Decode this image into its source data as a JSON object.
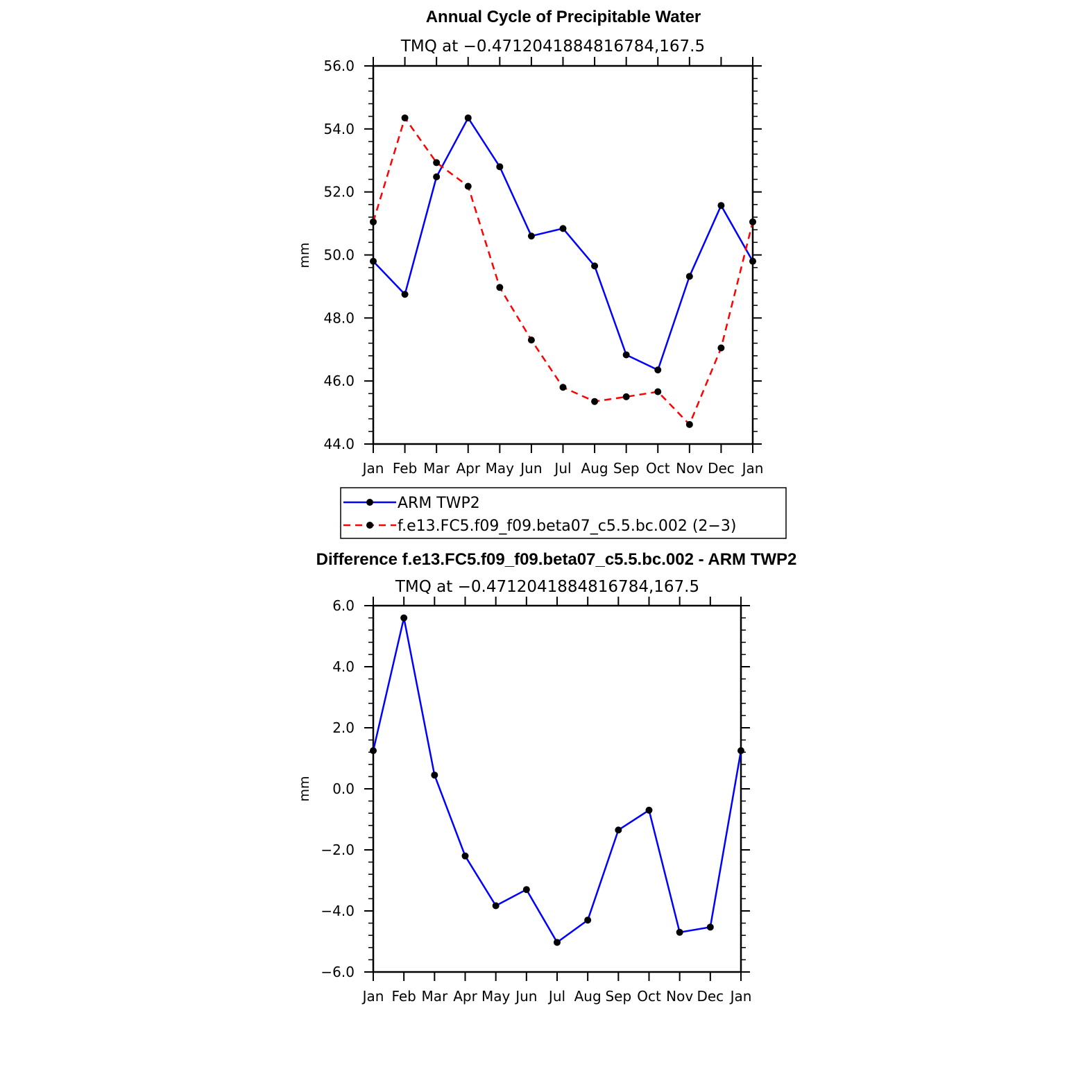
{
  "chart_data": [
    {
      "type": "line",
      "title": "Annual Cycle of Precipitable Water",
      "subtitle": "TMQ at −0.4712041884816784,167.5",
      "xlabel": "",
      "ylabel": "mm",
      "categories": [
        "Jan",
        "Feb",
        "Mar",
        "Apr",
        "May",
        "Jun",
        "Jul",
        "Aug",
        "Sep",
        "Oct",
        "Nov",
        "Dec",
        "Jan"
      ],
      "ylim": [
        44.0,
        56.0
      ],
      "ytick_step": 2.0,
      "ytick_labels": [
        "44.0",
        "46.0",
        "48.0",
        "50.0",
        "52.0",
        "54.0",
        "56.0"
      ],
      "series": [
        {
          "name": "ARM TWP2",
          "color": "#0000ff",
          "dash": "solid",
          "values": [
            49.8,
            48.75,
            52.48,
            54.35,
            52.8,
            50.6,
            50.84,
            49.65,
            46.83,
            46.35,
            49.32,
            51.57,
            49.8
          ]
        },
        {
          "name": "f.e13.FC5.f09_f09.beta07_c5.5.bc.002 (2−3)",
          "color": "#ff0000",
          "dash": "dashed",
          "values": [
            51.05,
            54.35,
            52.93,
            52.18,
            48.97,
            47.3,
            45.8,
            45.35,
            45.5,
            45.66,
            44.62,
            47.05,
            51.05
          ]
        }
      ],
      "legend_position": "below"
    },
    {
      "type": "line",
      "title": "Difference f.e13.FC5.f09_f09.beta07_c5.5.bc.002 - ARM TWP2",
      "subtitle": "TMQ at −0.4712041884816784,167.5",
      "xlabel": "",
      "ylabel": "mm",
      "categories": [
        "Jan",
        "Feb",
        "Mar",
        "Apr",
        "May",
        "Jun",
        "Jul",
        "Aug",
        "Sep",
        "Oct",
        "Nov",
        "Dec",
        "Jan"
      ],
      "ylim": [
        -6.0,
        6.0
      ],
      "ytick_step": 2.0,
      "ytick_labels": [
        "−6.0",
        "−4.0",
        "−2.0",
        "0.0",
        "2.0",
        "4.0",
        "6.0"
      ],
      "series": [
        {
          "name": "Difference",
          "color": "#0000ff",
          "dash": "solid",
          "values": [
            1.25,
            5.6,
            0.45,
            -2.2,
            -3.83,
            -3.3,
            -5.03,
            -4.3,
            -1.35,
            -0.7,
            -4.7,
            -4.53,
            1.25
          ]
        }
      ]
    }
  ]
}
